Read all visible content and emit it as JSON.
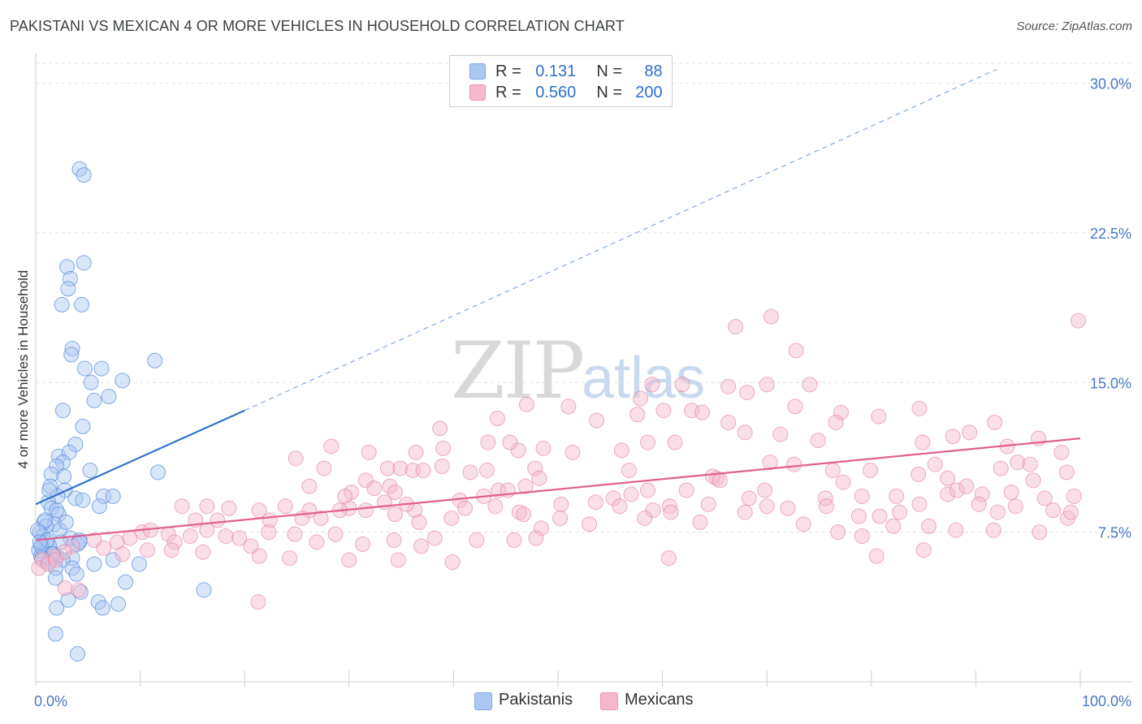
{
  "title": "PAKISTANI VS MEXICAN 4 OR MORE VEHICLES IN HOUSEHOLD CORRELATION CHART",
  "source": "Source: ZipAtlas.com",
  "watermark": {
    "zip": "ZIP",
    "atlas": "atlas"
  },
  "legend": {
    "rows": [
      {
        "r_label": "R =",
        "r_value": "0.131",
        "n_label": "N =",
        "n_value": "88",
        "color": "#aac8f2"
      },
      {
        "r_label": "R =",
        "r_value": "0.560",
        "n_label": "N =",
        "n_value": "200",
        "color": "#f7b8cc"
      }
    ]
  },
  "bottom_legend": [
    {
      "label": "Pakistanis",
      "color": "#aac8f2"
    },
    {
      "label": "Mexicans",
      "color": "#f7b8cc"
    }
  ],
  "chart_data": {
    "type": "scatter",
    "title": "PAKISTANI VS MEXICAN 4 OR MORE VEHICLES IN HOUSEHOLD CORRELATION CHART",
    "xlabel": "",
    "ylabel": "4 or more Vehicles in Household",
    "xlim": [
      0,
      100
    ],
    "ylim": [
      0,
      31
    ],
    "x_tick_labels": [
      "0.0%",
      "100.0%"
    ],
    "y_ticks": [
      7.5,
      15.0,
      22.5,
      30.0
    ],
    "y_tick_labels": [
      "7.5%",
      "15.0%",
      "22.5%",
      "30.0%"
    ],
    "grid": true,
    "series": [
      {
        "name": "Pakistanis",
        "color": "#5b8fde",
        "fill": "#aac8f2",
        "trend_solid": [
          [
            0,
            8.9
          ],
          [
            20,
            13.6
          ]
        ],
        "trend_dashed": [
          [
            20,
            13.6
          ],
          [
            92,
            30.7
          ]
        ],
        "points": [
          [
            4.2,
            25.7
          ],
          [
            4.6,
            25.4
          ],
          [
            3.0,
            20.8
          ],
          [
            4.6,
            21.0
          ],
          [
            3.3,
            20.2
          ],
          [
            3.1,
            19.7
          ],
          [
            2.5,
            18.9
          ],
          [
            4.4,
            18.9
          ],
          [
            3.5,
            16.7
          ],
          [
            3.4,
            16.4
          ],
          [
            11.4,
            16.1
          ],
          [
            4.7,
            15.7
          ],
          [
            6.3,
            15.7
          ],
          [
            8.3,
            15.1
          ],
          [
            5.3,
            15.0
          ],
          [
            7.0,
            14.3
          ],
          [
            5.6,
            14.1
          ],
          [
            2.6,
            13.6
          ],
          [
            4.5,
            12.8
          ],
          [
            3.8,
            11.9
          ],
          [
            2.2,
            11.3
          ],
          [
            3.2,
            11.5
          ],
          [
            2.6,
            11.0
          ],
          [
            2.0,
            10.8
          ],
          [
            1.5,
            10.4
          ],
          [
            2.7,
            10.3
          ],
          [
            5.2,
            10.6
          ],
          [
            11.7,
            10.5
          ],
          [
            1.4,
            9.8
          ],
          [
            2.8,
            9.6
          ],
          [
            2.1,
            9.3
          ],
          [
            6.5,
            9.3
          ],
          [
            7.4,
            9.3
          ],
          [
            3.8,
            9.2
          ],
          [
            4.5,
            9.1
          ],
          [
            1.2,
            9.0
          ],
          [
            6.1,
            8.8
          ],
          [
            1.5,
            8.7
          ],
          [
            2.0,
            8.6
          ],
          [
            2.2,
            8.4
          ],
          [
            0.8,
            8.0
          ],
          [
            1.8,
            7.9
          ],
          [
            1.0,
            7.8
          ],
          [
            2.3,
            7.6
          ],
          [
            0.4,
            7.5
          ],
          [
            0.7,
            7.3
          ],
          [
            3.3,
            7.2
          ],
          [
            4.2,
            7.1
          ],
          [
            0.9,
            7.0
          ],
          [
            2.4,
            7.0
          ],
          [
            0.6,
            6.9
          ],
          [
            1.3,
            6.8
          ],
          [
            0.3,
            6.6
          ],
          [
            0.8,
            6.5
          ],
          [
            1.7,
            6.4
          ],
          [
            2.0,
            6.3
          ],
          [
            4.0,
            6.9
          ],
          [
            4.2,
            7.0
          ],
          [
            3.5,
            6.2
          ],
          [
            2.6,
            6.1
          ],
          [
            1.2,
            6.0
          ],
          [
            5.6,
            5.9
          ],
          [
            7.4,
            6.1
          ],
          [
            9.9,
            5.9
          ],
          [
            0.5,
            6.3
          ],
          [
            3.5,
            5.7
          ],
          [
            1.9,
            5.7
          ],
          [
            3.9,
            5.4
          ],
          [
            1.9,
            5.2
          ],
          [
            8.6,
            5.0
          ],
          [
            16.1,
            4.6
          ],
          [
            4.3,
            4.5
          ],
          [
            3.1,
            4.1
          ],
          [
            6.0,
            4.0
          ],
          [
            7.9,
            3.9
          ],
          [
            6.4,
            3.7
          ],
          [
            2.0,
            3.7
          ],
          [
            1.9,
            2.4
          ],
          [
            4.0,
            1.4
          ],
          [
            0.5,
            6.8
          ],
          [
            1.6,
            6.4
          ],
          [
            0.2,
            7.6
          ],
          [
            1.1,
            7.1
          ],
          [
            0.9,
            8.1
          ],
          [
            2.9,
            8.0
          ],
          [
            1.3,
            9.6
          ],
          [
            0.4,
            7.0
          ],
          [
            0.6,
            6.2
          ]
        ]
      },
      {
        "name": "Mexicans",
        "color": "#e07aa0",
        "fill": "#f7b8cc",
        "trend_solid": [
          [
            0,
            7.1
          ],
          [
            100,
            12.2
          ]
        ],
        "points": [
          [
            67.0,
            17.8
          ],
          [
            70.4,
            18.3
          ],
          [
            99.8,
            18.1
          ],
          [
            72.8,
            16.6
          ],
          [
            59.0,
            14.9
          ],
          [
            61.9,
            14.9
          ],
          [
            47.0,
            13.9
          ],
          [
            57.9,
            14.2
          ],
          [
            66.3,
            14.8
          ],
          [
            70.0,
            14.9
          ],
          [
            74.1,
            14.9
          ],
          [
            77.1,
            13.5
          ],
          [
            72.7,
            13.8
          ],
          [
            62.8,
            13.6
          ],
          [
            63.8,
            13.5
          ],
          [
            68.1,
            14.5
          ],
          [
            84.6,
            13.7
          ],
          [
            80.7,
            13.3
          ],
          [
            60.1,
            13.6
          ],
          [
            51.0,
            13.8
          ],
          [
            91.8,
            13.0
          ],
          [
            89.4,
            12.5
          ],
          [
            76.6,
            13.0
          ],
          [
            66.3,
            13.0
          ],
          [
            57.6,
            13.4
          ],
          [
            53.7,
            13.1
          ],
          [
            44.2,
            13.2
          ],
          [
            38.7,
            12.7
          ],
          [
            67.9,
            12.5
          ],
          [
            71.3,
            12.4
          ],
          [
            84.9,
            12.0
          ],
          [
            87.8,
            12.3
          ],
          [
            93.0,
            11.8
          ],
          [
            98.2,
            11.5
          ],
          [
            96.0,
            12.2
          ],
          [
            74.9,
            12.1
          ],
          [
            61.2,
            12.0
          ],
          [
            58.6,
            12.0
          ],
          [
            56.1,
            11.6
          ],
          [
            51.4,
            11.5
          ],
          [
            48.6,
            11.7
          ],
          [
            46.2,
            11.6
          ],
          [
            45.4,
            12.0
          ],
          [
            43.3,
            12.0
          ],
          [
            39.0,
            11.7
          ],
          [
            36.4,
            11.5
          ],
          [
            31.9,
            11.5
          ],
          [
            28.3,
            11.8
          ],
          [
            24.9,
            11.2
          ],
          [
            27.6,
            10.7
          ],
          [
            33.7,
            10.7
          ],
          [
            34.9,
            10.7
          ],
          [
            36.1,
            10.6
          ],
          [
            37.1,
            10.6
          ],
          [
            38.9,
            10.8
          ],
          [
            41.6,
            10.5
          ],
          [
            43.2,
            10.6
          ],
          [
            47.8,
            10.7
          ],
          [
            48.2,
            10.2
          ],
          [
            56.8,
            10.6
          ],
          [
            65.2,
            10.2
          ],
          [
            64.8,
            10.3
          ],
          [
            65.5,
            10.1
          ],
          [
            70.3,
            11.0
          ],
          [
            72.6,
            10.9
          ],
          [
            76.3,
            10.6
          ],
          [
            77.3,
            10.0
          ],
          [
            79.9,
            10.6
          ],
          [
            84.5,
            10.4
          ],
          [
            86.1,
            10.9
          ],
          [
            87.3,
            10.2
          ],
          [
            92.4,
            10.7
          ],
          [
            95.5,
            10.1
          ],
          [
            98.7,
            10.5
          ],
          [
            94.0,
            11.0
          ],
          [
            95.2,
            10.9
          ],
          [
            26.2,
            9.8
          ],
          [
            31.6,
            10.1
          ],
          [
            32.4,
            9.7
          ],
          [
            33.9,
            9.8
          ],
          [
            30.2,
            9.5
          ],
          [
            29.6,
            9.3
          ],
          [
            34.4,
            9.5
          ],
          [
            40.6,
            9.1
          ],
          [
            42.9,
            9.3
          ],
          [
            44.3,
            9.6
          ],
          [
            45.2,
            9.6
          ],
          [
            46.9,
            9.8
          ],
          [
            55.3,
            9.2
          ],
          [
            57.0,
            9.4
          ],
          [
            58.6,
            9.6
          ],
          [
            62.3,
            9.6
          ],
          [
            69.8,
            9.6
          ],
          [
            75.6,
            9.2
          ],
          [
            79.1,
            9.3
          ],
          [
            82.4,
            9.3
          ],
          [
            87.3,
            9.4
          ],
          [
            88.2,
            9.6
          ],
          [
            89.1,
            9.8
          ],
          [
            90.6,
            9.4
          ],
          [
            93.4,
            9.5
          ],
          [
            96.6,
            9.2
          ],
          [
            99.4,
            9.3
          ],
          [
            97.4,
            8.6
          ],
          [
            98.8,
            8.2
          ],
          [
            93.8,
            8.8
          ],
          [
            92.1,
            8.5
          ],
          [
            90.3,
            8.9
          ],
          [
            84.6,
            8.9
          ],
          [
            82.7,
            8.5
          ],
          [
            80.8,
            8.3
          ],
          [
            78.8,
            8.3
          ],
          [
            75.7,
            8.8
          ],
          [
            72.0,
            8.7
          ],
          [
            70.0,
            8.8
          ],
          [
            68.3,
            9.2
          ],
          [
            64.4,
            8.9
          ],
          [
            60.7,
            8.8
          ],
          [
            59.1,
            8.6
          ],
          [
            55.9,
            8.8
          ],
          [
            53.6,
            9.0
          ],
          [
            50.3,
            8.9
          ],
          [
            46.3,
            8.5
          ],
          [
            44.0,
            8.8
          ],
          [
            41.1,
            8.7
          ],
          [
            36.3,
            8.6
          ],
          [
            35.5,
            8.9
          ],
          [
            33.4,
            9.0
          ],
          [
            31.6,
            8.6
          ],
          [
            30.0,
            8.7
          ],
          [
            26.2,
            8.6
          ],
          [
            23.9,
            8.8
          ],
          [
            21.4,
            8.6
          ],
          [
            16.4,
            8.8
          ],
          [
            14.0,
            8.8
          ],
          [
            18.5,
            8.7
          ],
          [
            15.3,
            8.1
          ],
          [
            17.4,
            8.1
          ],
          [
            22.4,
            8.1
          ],
          [
            27.3,
            8.2
          ],
          [
            25.5,
            8.2
          ],
          [
            29.1,
            8.6
          ],
          [
            39.8,
            8.2
          ],
          [
            36.7,
            8.0
          ],
          [
            34.4,
            8.4
          ],
          [
            58.3,
            8.2
          ],
          [
            60.8,
            8.5
          ],
          [
            50.2,
            8.2
          ],
          [
            46.7,
            8.4
          ],
          [
            48.4,
            7.7
          ],
          [
            53.0,
            7.9
          ],
          [
            63.6,
            8.0
          ],
          [
            67.9,
            8.5
          ],
          [
            73.5,
            7.9
          ],
          [
            76.8,
            7.5
          ],
          [
            79.1,
            7.3
          ],
          [
            82.1,
            7.8
          ],
          [
            85.5,
            7.8
          ],
          [
            88.1,
            7.6
          ],
          [
            91.7,
            7.6
          ],
          [
            96.1,
            7.5
          ],
          [
            99.1,
            8.5
          ],
          [
            10.2,
            7.5
          ],
          [
            11.0,
            7.6
          ],
          [
            12.7,
            7.4
          ],
          [
            13.3,
            7.0
          ],
          [
            14.8,
            7.3
          ],
          [
            16.4,
            7.6
          ],
          [
            18.2,
            7.3
          ],
          [
            19.5,
            7.2
          ],
          [
            20.6,
            6.8
          ],
          [
            22.3,
            7.5
          ],
          [
            24.8,
            7.4
          ],
          [
            26.9,
            7.0
          ],
          [
            28.7,
            7.4
          ],
          [
            31.3,
            6.9
          ],
          [
            34.3,
            7.1
          ],
          [
            36.9,
            6.8
          ],
          [
            38.2,
            7.2
          ],
          [
            42.2,
            7.1
          ],
          [
            45.8,
            7.1
          ],
          [
            47.9,
            7.2
          ],
          [
            9.0,
            7.2
          ],
          [
            7.8,
            7.0
          ],
          [
            5.6,
            7.1
          ],
          [
            3.5,
            6.8
          ],
          [
            2.7,
            6.5
          ],
          [
            1.7,
            6.3
          ],
          [
            6.5,
            6.7
          ],
          [
            8.3,
            6.4
          ],
          [
            10.7,
            6.6
          ],
          [
            13.0,
            6.6
          ],
          [
            16.0,
            6.5
          ],
          [
            21.4,
            6.3
          ],
          [
            24.3,
            6.2
          ],
          [
            30.0,
            6.1
          ],
          [
            34.7,
            6.1
          ],
          [
            39.9,
            6.0
          ],
          [
            2.8,
            4.7
          ],
          [
            4.1,
            4.6
          ],
          [
            21.3,
            4.0
          ],
          [
            60.6,
            6.2
          ],
          [
            80.5,
            6.3
          ],
          [
            85.0,
            6.6
          ],
          [
            0.6,
            6.1
          ],
          [
            0.3,
            5.7
          ],
          [
            1.2,
            5.9
          ],
          [
            1.9,
            6.1
          ]
        ]
      }
    ]
  }
}
